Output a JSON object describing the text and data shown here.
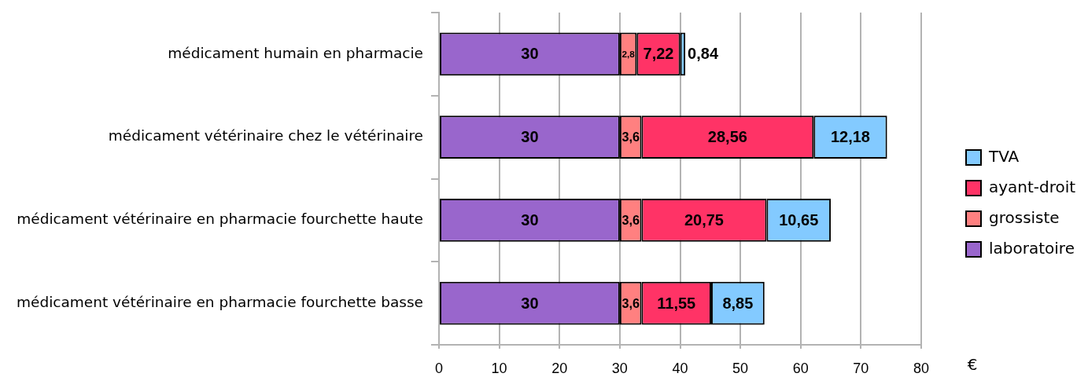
{
  "chart_data": {
    "type": "bar",
    "orientation": "horizontal",
    "stacked": true,
    "categories": [
      "médicament humain en pharmacie",
      "médicament vétérinaire chez le vétérinaire",
      "médicament vétérinaire en pharmacie fourchette haute",
      "médicament vétérinaire en pharmacie fourchette basse"
    ],
    "series": [
      {
        "name": "laboratoire",
        "color": "#9966cc",
        "values": [
          30,
          30,
          30,
          30
        ],
        "value_labels": [
          "30",
          "30",
          "30",
          "30"
        ]
      },
      {
        "name": "grossiste",
        "color": "#ff8080",
        "values": [
          2.8,
          3.6,
          3.6,
          3.6
        ],
        "value_labels": [
          "2,8",
          "3,6",
          "3,6",
          "3,6"
        ]
      },
      {
        "name": "ayant-droit",
        "color": "#ff3366",
        "values": [
          7.22,
          28.56,
          20.75,
          11.55
        ],
        "value_labels": [
          "7,22",
          "28,56",
          "20,75",
          "11,55"
        ]
      },
      {
        "name": "TVA",
        "color": "#83caff",
        "values": [
          0.84,
          12.18,
          10.65,
          8.85
        ],
        "value_labels": [
          "0,84",
          "12,18",
          "10,65",
          "8,85"
        ]
      }
    ],
    "xlim": [
      0,
      80
    ],
    "xticks": [
      0,
      10,
      20,
      30,
      40,
      50,
      60,
      70,
      80
    ],
    "xlabel": "€",
    "grid": "x",
    "legend": "right"
  }
}
